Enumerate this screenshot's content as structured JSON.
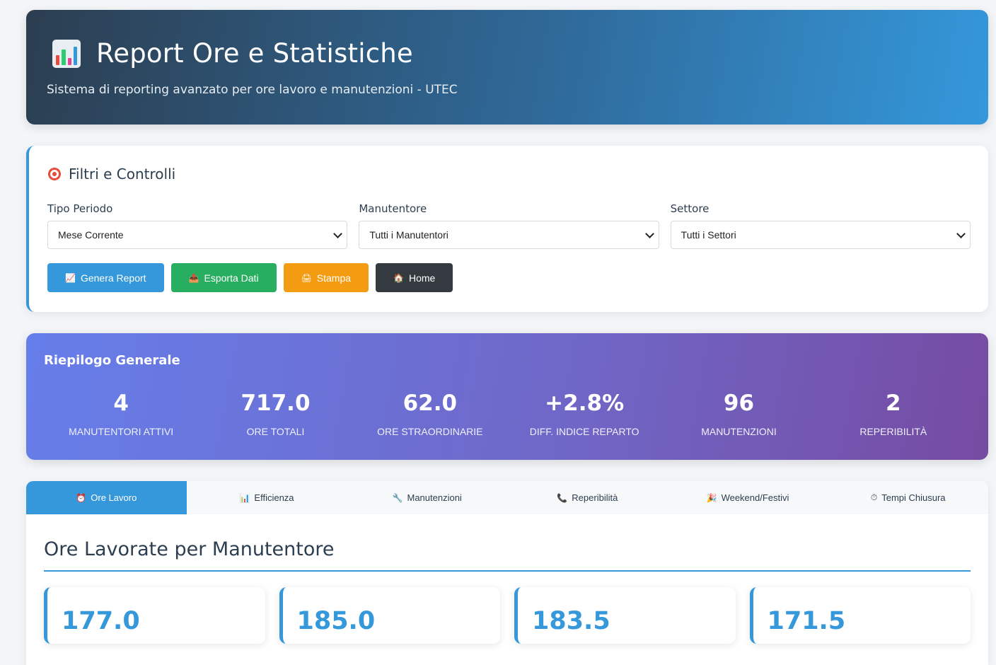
{
  "header": {
    "title": "Report Ore e Statistiche",
    "subtitle": "Sistema di reporting avanzato per ore lavoro e manutenzioni - UTEC",
    "icon": "bar-chart-icon"
  },
  "filters": {
    "title": "Filtri e Controlli",
    "icon": "target-icon",
    "fields": [
      {
        "label": "Tipo Periodo",
        "value": "Mese Corrente"
      },
      {
        "label": "Manutentore",
        "value": "Tutti i Manutentori"
      },
      {
        "label": "Settore",
        "value": "Tutti i Settori"
      }
    ],
    "buttons": [
      {
        "label": "Genera Report",
        "icon": "📈",
        "color": "#3498db"
      },
      {
        "label": "Esporta Dati",
        "icon": "📤",
        "color": "#27ae60"
      },
      {
        "label": "Stampa",
        "icon": "🖨",
        "color": "#f39c12"
      },
      {
        "label": "Home",
        "icon": "🏠",
        "color": "#343a40"
      }
    ]
  },
  "summary": {
    "title": "Riepilogo Generale",
    "stats": [
      {
        "value": "4",
        "label": "Manutentori Attivi"
      },
      {
        "value": "717.0",
        "label": "Ore Totali"
      },
      {
        "value": "62.0",
        "label": "Ore Straordinarie"
      },
      {
        "value": "+2.8%",
        "label": "Diff. Indice Reparto"
      },
      {
        "value": "96",
        "label": "Manutenzioni"
      },
      {
        "value": "2",
        "label": "Reperibilità"
      }
    ]
  },
  "tabs": [
    {
      "label": "Ore Lavoro",
      "icon": "⏰",
      "active": true
    },
    {
      "label": "Efficienza",
      "icon": "📊",
      "active": false
    },
    {
      "label": "Manutenzioni",
      "icon": "🔧",
      "active": false
    },
    {
      "label": "Reperibilità",
      "icon": "📞",
      "active": false
    },
    {
      "label": "Weekend/Festivi",
      "icon": "🎉",
      "active": false
    },
    {
      "label": "Tempi Chiusura",
      "icon": "⏱",
      "active": false
    }
  ],
  "content": {
    "title": "Ore Lavorate per Manutentore",
    "cards": [
      {
        "value": "177.0"
      },
      {
        "value": "185.0"
      },
      {
        "value": "183.5"
      },
      {
        "value": "171.5"
      }
    ]
  }
}
